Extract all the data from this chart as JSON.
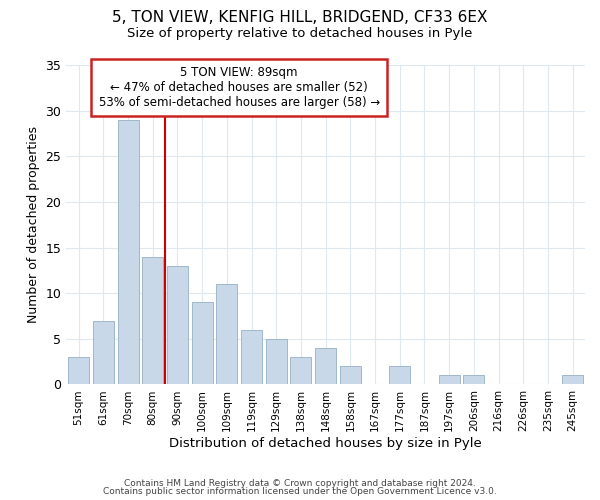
{
  "title": "5, TON VIEW, KENFIG HILL, BRIDGEND, CF33 6EX",
  "subtitle": "Size of property relative to detached houses in Pyle",
  "xlabel": "Distribution of detached houses by size in Pyle",
  "ylabel": "Number of detached properties",
  "bar_labels": [
    "51sqm",
    "61sqm",
    "70sqm",
    "80sqm",
    "90sqm",
    "100sqm",
    "109sqm",
    "119sqm",
    "129sqm",
    "138sqm",
    "148sqm",
    "158sqm",
    "167sqm",
    "177sqm",
    "187sqm",
    "197sqm",
    "206sqm",
    "216sqm",
    "226sqm",
    "235sqm",
    "245sqm"
  ],
  "bar_values": [
    3,
    7,
    29,
    14,
    13,
    9,
    11,
    6,
    5,
    3,
    4,
    2,
    0,
    2,
    0,
    1,
    1,
    0,
    0,
    0,
    1
  ],
  "bar_color": "#c8d8e8",
  "bar_edge_color": "#a0b8cc",
  "ylim": [
    0,
    35
  ],
  "yticks": [
    0,
    5,
    10,
    15,
    20,
    25,
    30,
    35
  ],
  "vline_color": "#cc0000",
  "annotation_title": "5 TON VIEW: 89sqm",
  "annotation_line1": "← 47% of detached houses are smaller (52)",
  "annotation_line2": "53% of semi-detached houses are larger (58) →",
  "annotation_box_color": "#ffffff",
  "annotation_box_edge": "#cc2222",
  "footer1": "Contains HM Land Registry data © Crown copyright and database right 2024.",
  "footer2": "Contains public sector information licensed under the Open Government Licence v3.0.",
  "background_color": "#ffffff",
  "grid_color": "#dde8f0"
}
